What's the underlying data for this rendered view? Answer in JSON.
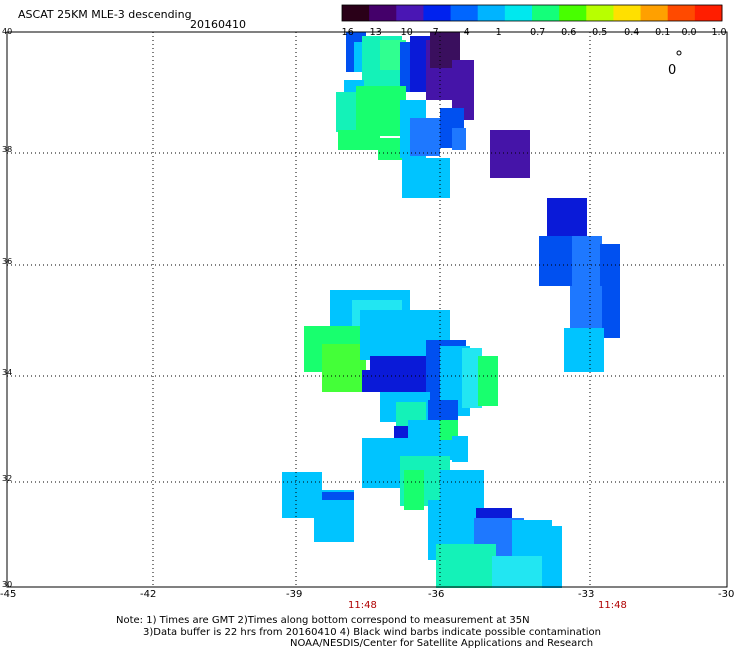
{
  "title": "ASCAT 25KM MLE-3 descending",
  "date": "20160410",
  "colorbar": {
    "labels": [
      "-16",
      "-13",
      "-10",
      "-7",
      "-4",
      "-1",
      "-0.7",
      "-0.6",
      "-0.5",
      "-0.4",
      "-0.1",
      "0.0",
      "1.0"
    ],
    "colors": [
      "#2a0018",
      "#44006a",
      "#4a16b4",
      "#0022ee",
      "#0066ff",
      "#00b4ff",
      "#00e8ee",
      "#14ff7a",
      "#48ff00",
      "#b8ff00",
      "#ffe000",
      "#ffa000",
      "#ff4a00",
      "#ff1e00"
    ]
  },
  "y_axis_labels": [
    "40",
    "38",
    "36",
    "34",
    "32",
    "30"
  ],
  "x_axis_labels": [
    "-45",
    "-42",
    "-39",
    "-36",
    "-33",
    "-30"
  ],
  "time_labels": [
    "11:48",
    "11:48"
  ],
  "notes": [
    "Note: 1) Times are GMT 2)Times along bottom correspond to measurement at 35N",
    "3)Data buffer is 22 hrs from 20160410 4) Black wind barbs indicate possible contamination",
    "NOAA/NESDIS/Center for Satellite Applications and Research"
  ],
  "legend_symbol": "0"
}
